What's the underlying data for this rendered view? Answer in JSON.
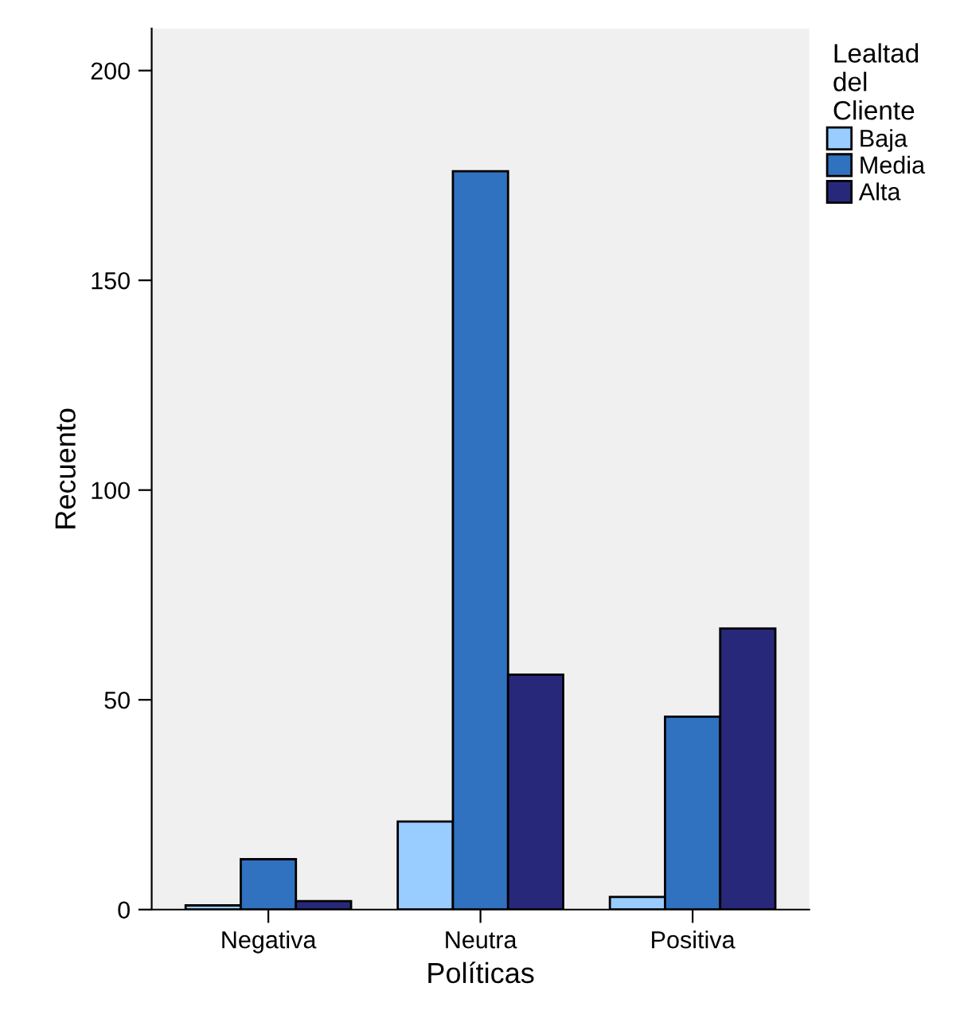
{
  "chart_data": {
    "type": "bar",
    "xlabel": "Políticas",
    "ylabel": "Recuento",
    "legend_title": "Lealtad\ndel\nCliente",
    "categories": [
      "Negativa",
      "Neutra",
      "Positiva"
    ],
    "series": [
      {
        "name": "Baja",
        "color": "#99ccff",
        "values": [
          1,
          21,
          3
        ]
      },
      {
        "name": "Media",
        "color": "#3072c0",
        "values": [
          12,
          176,
          46
        ]
      },
      {
        "name": "Alta",
        "color": "#28287a",
        "values": [
          2,
          56,
          67
        ]
      }
    ],
    "ylim": [
      0,
      210
    ],
    "yticks": [
      0,
      50,
      100,
      150,
      200
    ],
    "grid": false,
    "legend": "right"
  }
}
